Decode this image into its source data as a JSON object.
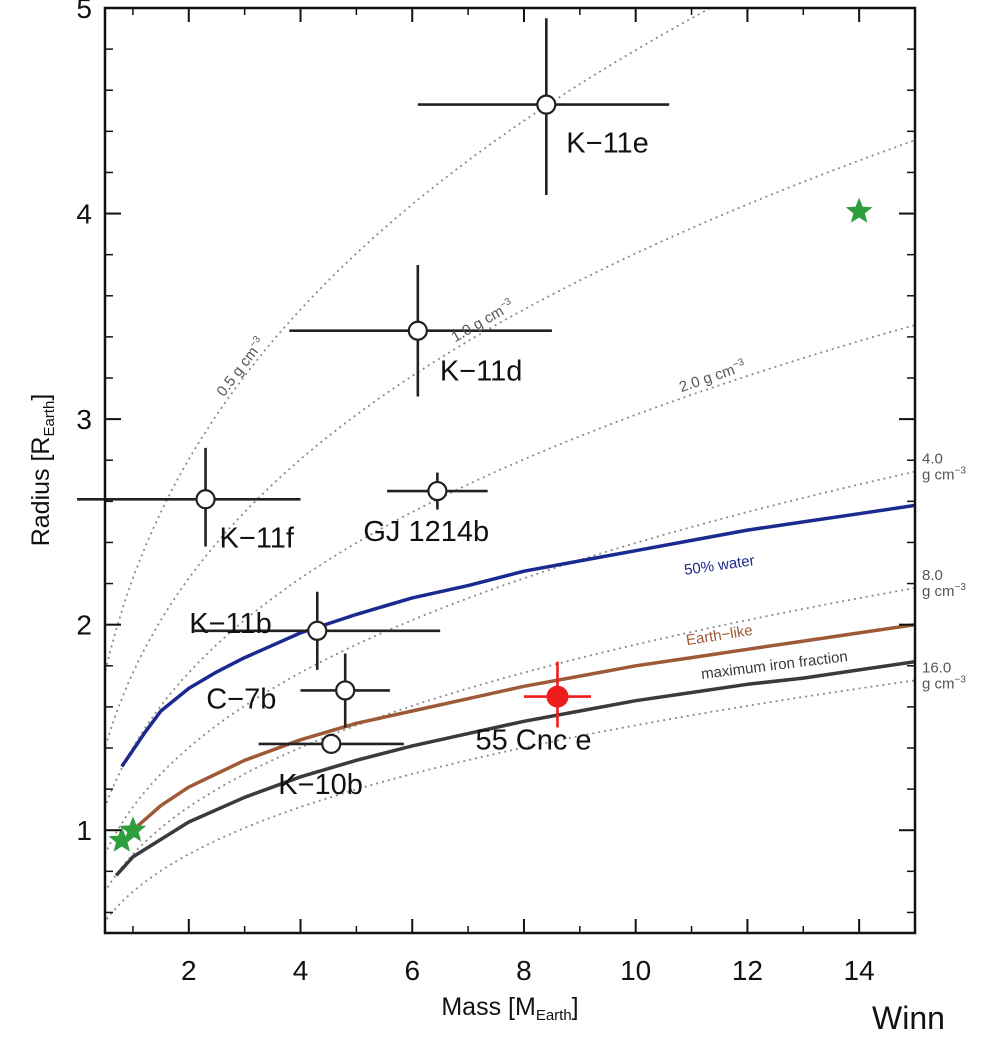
{
  "chart_data": {
    "type": "scatter",
    "xlabel": "Mass [M",
    "xlabel_sub": "Earth",
    "xlabel_close": "]",
    "ylabel": "Radius [R",
    "ylabel_sub": "Earth",
    "ylabel_close": "]",
    "xlim": [
      0.5,
      15
    ],
    "ylim": [
      0.5,
      5
    ],
    "xticks": [
      "2",
      "4",
      "6",
      "8",
      "10",
      "12",
      "14"
    ],
    "yticks": [
      "1",
      "2",
      "3",
      "4",
      "5"
    ],
    "grid": false,
    "points": [
      {
        "label": "K−11e",
        "x": 8.4,
        "y": 4.53,
        "xerr": [
          2.3,
          2.2
        ],
        "yerr": [
          0.44,
          0.42
        ],
        "marker": "open-circle",
        "color": "#222222"
      },
      {
        "label": "K−11d",
        "x": 6.1,
        "y": 3.43,
        "xerr": [
          2.3,
          2.4
        ],
        "yerr": [
          0.32,
          0.32
        ],
        "marker": "open-circle",
        "color": "#222222"
      },
      {
        "label": "K−11f",
        "x": 2.3,
        "y": 2.61,
        "xerr": [
          2.3,
          1.7
        ],
        "yerr": [
          0.23,
          0.25
        ],
        "marker": "open-circle",
        "color": "#222222"
      },
      {
        "label": "GJ 1214b",
        "x": 6.45,
        "y": 2.65,
        "xerr": [
          0.9,
          0.9
        ],
        "yerr": [
          0.09,
          0.09
        ],
        "marker": "open-circle",
        "color": "#222222"
      },
      {
        "label": "K−11b",
        "x": 4.3,
        "y": 1.97,
        "xerr": [
          2.2,
          2.2
        ],
        "yerr": [
          0.19,
          0.19
        ],
        "marker": "open-circle",
        "color": "#222222"
      },
      {
        "label": "C−7b",
        "x": 4.8,
        "y": 1.68,
        "xerr": [
          0.8,
          0.8
        ],
        "yerr": [
          0.18,
          0.18
        ],
        "marker": "open-circle",
        "color": "#222222"
      },
      {
        "label": "K−10b",
        "x": 4.55,
        "y": 1.42,
        "xerr": [
          1.3,
          1.3
        ],
        "yerr": [
          0.03,
          0.03
        ],
        "marker": "open-circle",
        "color": "#222222"
      },
      {
        "label": "55 Cnc e",
        "x": 8.6,
        "y": 1.65,
        "xerr": [
          0.6,
          0.6
        ],
        "yerr": [
          0.15,
          0.17
        ],
        "marker": "filled-circle",
        "color": "#ee1c1c"
      }
    ],
    "stars": [
      {
        "x": 0.8,
        "y": 0.95,
        "color": "#2e9e3f"
      },
      {
        "x": 1.0,
        "y": 1.0,
        "color": "#2e9e3f"
      },
      {
        "x": 14.0,
        "y": 4.01,
        "color": "#2e9e3f"
      }
    ],
    "density_curves": [
      {
        "label": "0.5 g cm",
        "sup": "−3",
        "density": 0.5,
        "label_x": 3.0,
        "label_pos": "inline"
      },
      {
        "label": "1.0 g cm",
        "sup": "−3",
        "density": 1.0,
        "label_x": 7.3,
        "label_pos": "inline"
      },
      {
        "label": "2.0 g cm",
        "sup": "−3",
        "density": 2.0,
        "label_x": 11.4,
        "label_pos": "inline"
      },
      {
        "label": "4.0",
        "label2": "g cm",
        "sup": "−3",
        "density": 4.0,
        "label_pos": "right"
      },
      {
        "label": "8.0",
        "label2": "g cm",
        "sup": "−3",
        "density": 8.0,
        "label_pos": "right"
      },
      {
        "label": "16.0",
        "label2": "g cm",
        "sup": "−3",
        "density": 16.0,
        "label_pos": "right"
      }
    ],
    "models": [
      {
        "name": "50% water",
        "color": "#1b2a8f",
        "x": [
          0.8,
          1.2,
          1.5,
          2.0,
          2.5,
          3.0,
          4.0,
          5.0,
          6.0,
          7.0,
          8.0,
          9.0,
          10.0,
          11.0,
          12.0,
          13.0,
          14.0,
          15.0
        ],
        "y": [
          1.31,
          1.47,
          1.58,
          1.69,
          1.77,
          1.84,
          1.96,
          2.05,
          2.13,
          2.19,
          2.26,
          2.31,
          2.36,
          2.41,
          2.46,
          2.5,
          2.54,
          2.58
        ]
      },
      {
        "name": "Earth−like",
        "color": "#9e5a37",
        "x": [
          0.8,
          1.0,
          1.5,
          2.0,
          3.0,
          4.0,
          5.0,
          6.0,
          7.0,
          8.0,
          9.0,
          10.0,
          11.0,
          12.0,
          13.0,
          14.0,
          15.0
        ],
        "y": [
          0.93,
          1.0,
          1.12,
          1.21,
          1.34,
          1.44,
          1.52,
          1.58,
          1.64,
          1.7,
          1.75,
          1.8,
          1.84,
          1.88,
          1.92,
          1.96,
          2.0
        ]
      },
      {
        "name": "maximum iron fraction",
        "color": "#3a3a3a",
        "x": [
          0.7,
          1.0,
          2.0,
          3.0,
          4.0,
          5.0,
          6.0,
          7.0,
          8.0,
          9.0,
          10.0,
          11.0,
          12.0,
          13.0,
          14.0,
          15.0
        ],
        "y": [
          0.78,
          0.87,
          1.04,
          1.16,
          1.26,
          1.34,
          1.41,
          1.47,
          1.53,
          1.58,
          1.63,
          1.67,
          1.71,
          1.74,
          1.78,
          1.82
        ]
      }
    ]
  },
  "footer_text": "Winn"
}
